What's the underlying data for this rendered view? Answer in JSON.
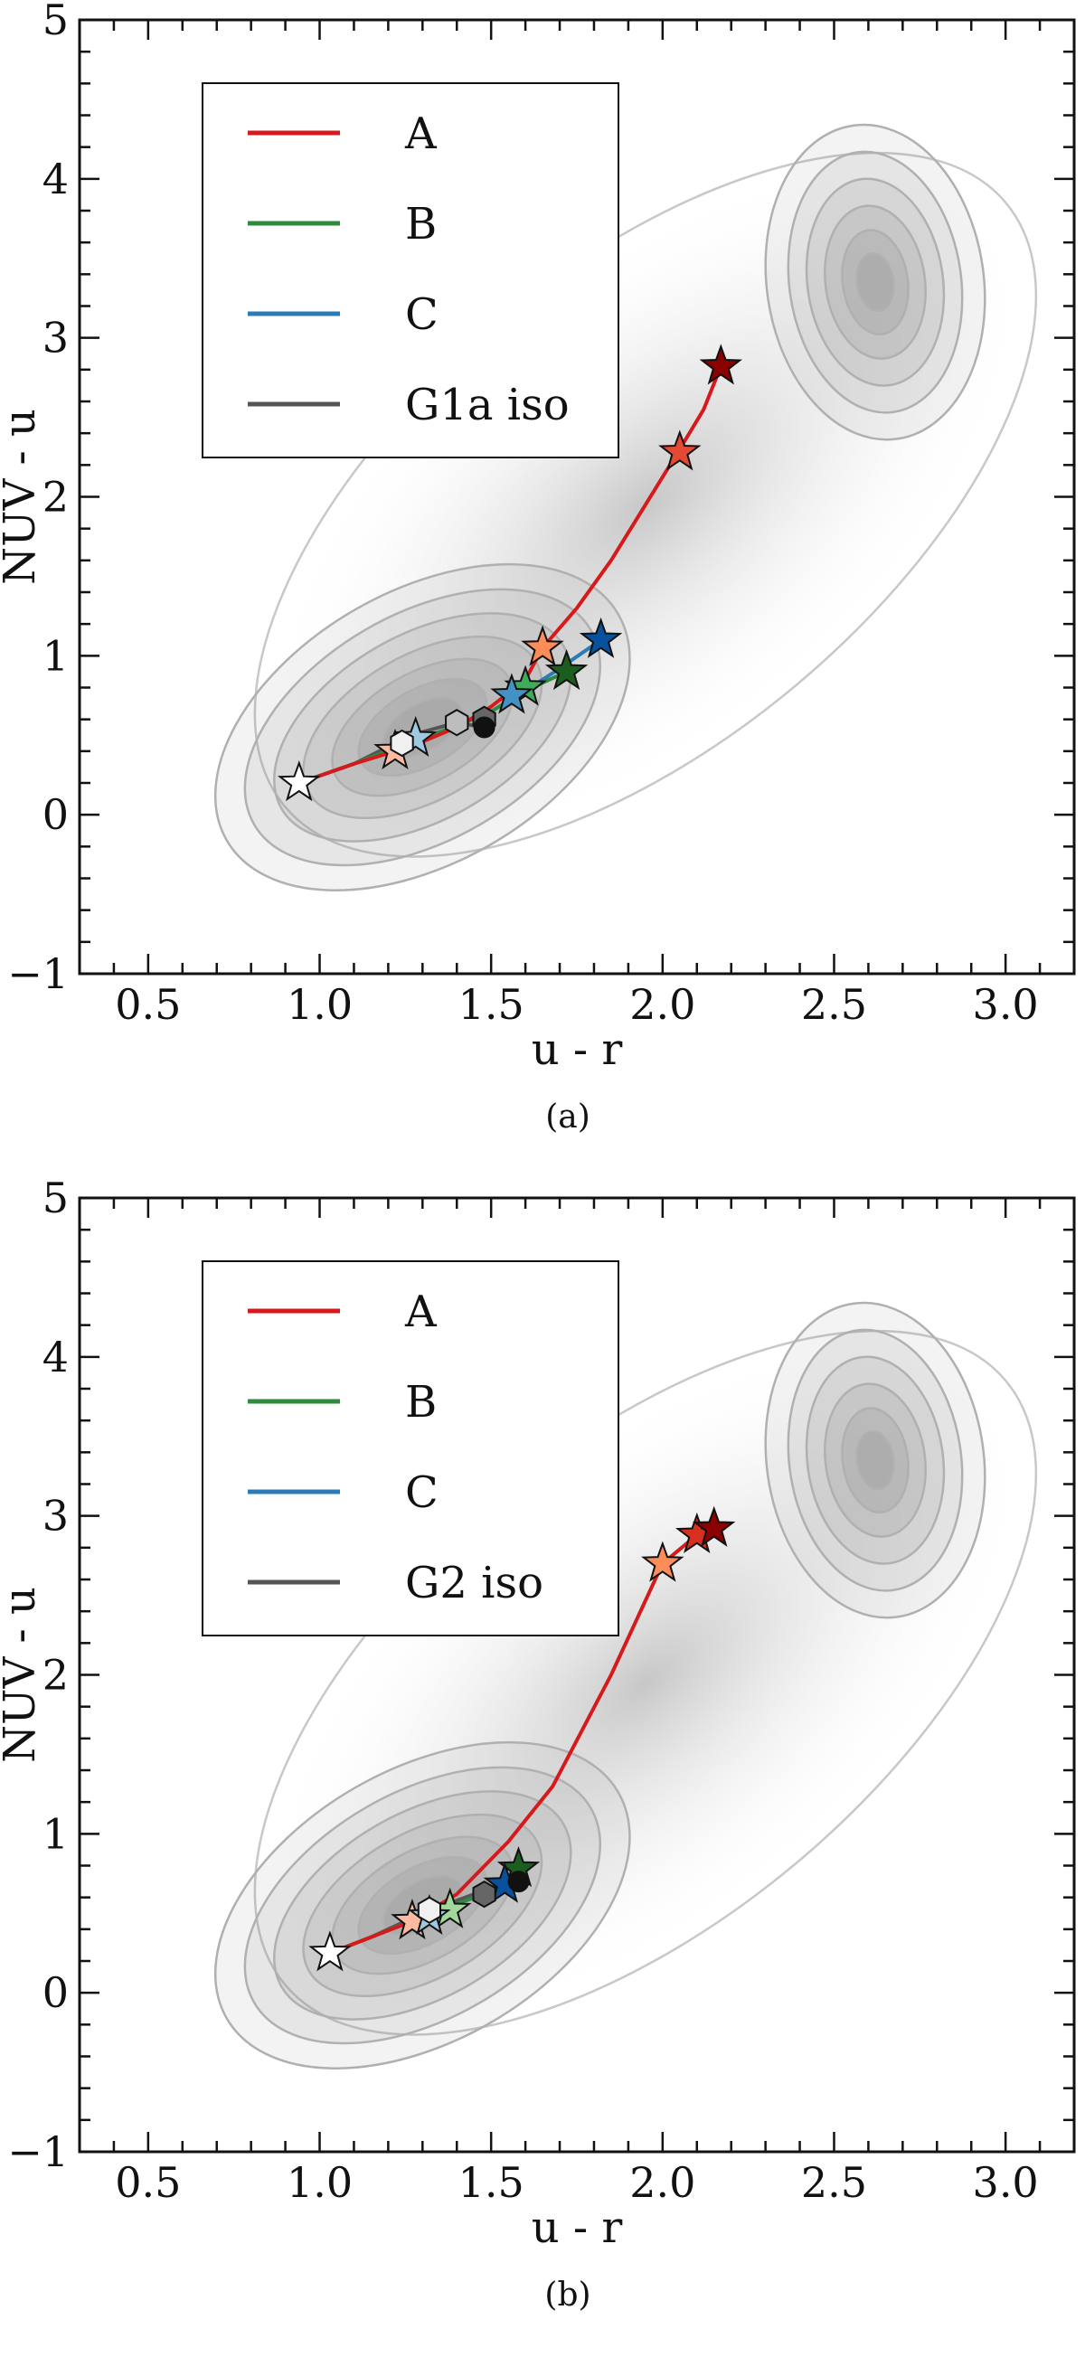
{
  "chart_data": [
    {
      "panel": "(a)",
      "type": "line",
      "xlabel": "u - r",
      "ylabel": "NUV - u",
      "xlim": [
        0.3,
        3.2
      ],
      "ylim": [
        -1,
        5
      ],
      "xticks": [
        "0.5",
        "1.0",
        "1.5",
        "2.0",
        "2.5",
        "3.0"
      ],
      "yticks": [
        "−1",
        "0",
        "1",
        "2",
        "3",
        "4",
        "5"
      ],
      "legend": [
        "A",
        "B",
        "C",
        "G1a iso"
      ],
      "background": "density contours of galaxy population in u-r vs NUV-u (blue cloud and red sequence)",
      "series": [
        {
          "name": "A",
          "color": "#d7191c",
          "x": [
            0.94,
            1.1,
            1.22,
            1.3,
            1.4,
            1.5,
            1.6,
            1.65,
            1.75,
            1.85,
            1.95,
            2.05,
            2.12,
            2.17
          ],
          "y": [
            0.2,
            0.32,
            0.4,
            0.46,
            0.55,
            0.68,
            0.85,
            1.05,
            1.3,
            1.6,
            1.95,
            2.3,
            2.55,
            2.82
          ]
        },
        {
          "name": "B",
          "color": "#2e8b3e",
          "x": [
            0.94,
            1.1,
            1.22,
            1.3,
            1.4,
            1.5,
            1.6,
            1.72
          ],
          "y": [
            0.2,
            0.32,
            0.42,
            0.48,
            0.56,
            0.65,
            0.78,
            0.9
          ]
        },
        {
          "name": "C",
          "color": "#2b7bb9",
          "x": [
            0.94,
            1.1,
            1.22,
            1.3,
            1.4,
            1.5,
            1.6,
            1.7,
            1.82
          ],
          "y": [
            0.2,
            0.32,
            0.42,
            0.48,
            0.56,
            0.65,
            0.78,
            0.92,
            1.1
          ]
        },
        {
          "name": "G1a iso",
          "color": "#555555",
          "x": [
            0.94,
            1.1,
            1.22,
            1.3,
            1.4,
            1.48
          ],
          "y": [
            0.2,
            0.32,
            0.45,
            0.52,
            0.58,
            0.55
          ]
        }
      ],
      "markers": [
        {
          "series": "A",
          "shape": "star",
          "x": [
            1.22,
            1.65,
            2.05,
            2.17
          ],
          "y": [
            0.4,
            1.05,
            2.28,
            2.82
          ],
          "colors": [
            "#fcbba1",
            "#fc8d59",
            "#e34a33",
            "#8b0000"
          ]
        },
        {
          "series": "B",
          "shape": "star",
          "x": [
            1.6,
            1.72
          ],
          "y": [
            0.8,
            0.9
          ],
          "colors": [
            "#41ab5d",
            "#1b5e20"
          ]
        },
        {
          "series": "C",
          "shape": "star",
          "x": [
            1.28,
            1.56,
            1.82
          ],
          "y": [
            0.48,
            0.75,
            1.1
          ],
          "colors": [
            "#9ecae1",
            "#4292c6",
            "#08519c"
          ]
        },
        {
          "series": "iso",
          "shape": "star",
          "x": [
            0.94
          ],
          "y": [
            0.2
          ],
          "colors": [
            "#ffffff"
          ]
        },
        {
          "series": "G1a iso",
          "shape": "hexagon",
          "x": [
            1.24,
            1.4,
            1.48
          ],
          "y": [
            0.45,
            0.58,
            0.6
          ],
          "colors": [
            "#f0f0f0",
            "#bdbdbd",
            "#666666"
          ]
        },
        {
          "series": "G1a iso",
          "shape": "circle",
          "x": [
            1.48
          ],
          "y": [
            0.55
          ],
          "colors": [
            "#111111"
          ]
        }
      ],
      "caption": "(a)"
    },
    {
      "panel": "(b)",
      "type": "line",
      "xlabel": "u - r",
      "ylabel": "NUV - u",
      "xlim": [
        0.3,
        3.2
      ],
      "ylim": [
        -1,
        5
      ],
      "xticks": [
        "0.5",
        "1.0",
        "1.5",
        "2.0",
        "2.5",
        "3.0"
      ],
      "yticks": [
        "−1",
        "0",
        "1",
        "2",
        "3",
        "4",
        "5"
      ],
      "legend": [
        "A",
        "B",
        "C",
        "G2 iso"
      ],
      "background": "density contours of galaxy population in u-r vs NUV-u (blue cloud and red sequence)",
      "series": [
        {
          "name": "A",
          "color": "#d7191c",
          "x": [
            1.03,
            1.15,
            1.27,
            1.4,
            1.55,
            1.68,
            1.85,
            2.0,
            2.1,
            2.15
          ],
          "y": [
            0.25,
            0.35,
            0.45,
            0.62,
            0.95,
            1.3,
            2.0,
            2.7,
            2.88,
            2.92
          ]
        },
        {
          "name": "B",
          "color": "#2e8b3e",
          "x": [
            1.03,
            1.15,
            1.3,
            1.45,
            1.58
          ],
          "y": [
            0.25,
            0.35,
            0.48,
            0.6,
            0.75
          ]
        },
        {
          "name": "C",
          "color": "#2b7bb9",
          "x": [
            1.03,
            1.15,
            1.3,
            1.45,
            1.56
          ],
          "y": [
            0.25,
            0.35,
            0.48,
            0.6,
            0.7
          ]
        },
        {
          "name": "G2 iso",
          "color": "#555555",
          "x": [
            1.03,
            1.15,
            1.3,
            1.45,
            1.58
          ],
          "y": [
            0.25,
            0.35,
            0.5,
            0.62,
            0.7
          ]
        }
      ],
      "markers": [
        {
          "series": "A",
          "shape": "star",
          "x": [
            1.27,
            2.0,
            2.1,
            2.15
          ],
          "y": [
            0.45,
            2.7,
            2.88,
            2.92
          ],
          "colors": [
            "#fcbba1",
            "#fc8d59",
            "#d7301f",
            "#8b0000"
          ]
        },
        {
          "series": "B",
          "shape": "star",
          "x": [
            1.38,
            1.58
          ],
          "y": [
            0.52,
            0.78
          ],
          "colors": [
            "#a1d99b",
            "#1b5e20"
          ]
        },
        {
          "series": "C",
          "shape": "star",
          "x": [
            1.32,
            1.54
          ],
          "y": [
            0.48,
            0.68
          ],
          "colors": [
            "#9ecae1",
            "#08519c"
          ]
        },
        {
          "series": "iso",
          "shape": "star",
          "x": [
            1.03
          ],
          "y": [
            0.25
          ],
          "colors": [
            "#ffffff"
          ]
        },
        {
          "series": "G2 iso",
          "shape": "hexagon",
          "x": [
            1.32,
            1.48
          ],
          "y": [
            0.52,
            0.62
          ],
          "colors": [
            "#f0f0f0",
            "#666666"
          ]
        },
        {
          "series": "G2 iso",
          "shape": "circle",
          "x": [
            1.58
          ],
          "y": [
            0.7
          ],
          "colors": [
            "#111111"
          ]
        }
      ],
      "caption": "(b)"
    }
  ]
}
